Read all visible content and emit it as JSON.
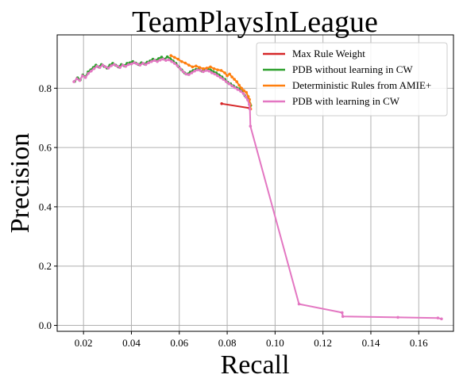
{
  "chart_data": {
    "type": "line",
    "title": "TeamPlaysInLeague",
    "xlabel": "Recall",
    "ylabel": "Precision",
    "xlim": [
      0.009,
      0.1745
    ],
    "ylim": [
      -0.02,
      0.98
    ],
    "xticks": [
      0.02,
      0.04,
      0.06,
      0.08,
      0.1,
      0.12,
      0.14,
      0.16
    ],
    "xtick_labels": [
      "0.02",
      "0.04",
      "0.06",
      "0.08",
      "0.10",
      "0.12",
      "0.14",
      "0.16"
    ],
    "yticks": [
      0.0,
      0.2,
      0.4,
      0.6,
      0.8
    ],
    "ytick_labels": [
      "0.0",
      "0.2",
      "0.4",
      "0.6",
      "0.8"
    ],
    "grid": true,
    "legend_position": "top-right",
    "series": [
      {
        "name": "Max Rule Weight",
        "color": "#d62728",
        "points": [
          [
            0.0777,
            0.748
          ],
          [
            0.0893,
            0.733
          ]
        ]
      },
      {
        "name": "PDB without learning in CW",
        "color": "#2ca02c",
        "points": [
          [
            0.0163,
            0.823
          ],
          [
            0.0175,
            0.835
          ],
          [
            0.0186,
            0.828
          ],
          [
            0.0197,
            0.845
          ],
          [
            0.0208,
            0.838
          ],
          [
            0.0219,
            0.855
          ],
          [
            0.023,
            0.862
          ],
          [
            0.0241,
            0.87
          ],
          [
            0.0252,
            0.878
          ],
          [
            0.0263,
            0.872
          ],
          [
            0.0275,
            0.88
          ],
          [
            0.0286,
            0.874
          ],
          [
            0.0298,
            0.868
          ],
          [
            0.031,
            0.878
          ],
          [
            0.0322,
            0.884
          ],
          [
            0.0334,
            0.878
          ],
          [
            0.0346,
            0.872
          ],
          [
            0.0358,
            0.88
          ],
          [
            0.037,
            0.876
          ],
          [
            0.0382,
            0.884
          ],
          [
            0.0394,
            0.886
          ],
          [
            0.0406,
            0.89
          ],
          [
            0.0418,
            0.885
          ],
          [
            0.043,
            0.88
          ],
          [
            0.0442,
            0.886
          ],
          [
            0.0454,
            0.882
          ],
          [
            0.0466,
            0.888
          ],
          [
            0.0478,
            0.892
          ],
          [
            0.049,
            0.898
          ],
          [
            0.0502,
            0.894
          ],
          [
            0.0514,
            0.9
          ],
          [
            0.0526,
            0.905
          ],
          [
            0.0538,
            0.898
          ],
          [
            0.055,
            0.906
          ],
          [
            0.0562,
            0.9
          ],
          [
            0.0574,
            0.892
          ],
          [
            0.0586,
            0.884
          ],
          [
            0.0598,
            0.872
          ],
          [
            0.061,
            0.862
          ],
          [
            0.0622,
            0.852
          ],
          [
            0.0634,
            0.848
          ],
          [
            0.0646,
            0.855
          ],
          [
            0.0658,
            0.86
          ],
          [
            0.067,
            0.864
          ],
          [
            0.0682,
            0.866
          ],
          [
            0.0694,
            0.858
          ],
          [
            0.0706,
            0.86
          ],
          [
            0.0718,
            0.866
          ],
          [
            0.073,
            0.862
          ],
          [
            0.0742,
            0.856
          ],
          [
            0.0754,
            0.852
          ],
          [
            0.0766,
            0.845
          ],
          [
            0.0778,
            0.838
          ],
          [
            0.079,
            0.83
          ],
          [
            0.0802,
            0.82
          ],
          [
            0.0814,
            0.815
          ],
          [
            0.0826,
            0.808
          ],
          [
            0.0838,
            0.802
          ],
          [
            0.085,
            0.798
          ],
          [
            0.0862,
            0.79
          ],
          [
            0.0874,
            0.775
          ],
          [
            0.0886,
            0.762
          ],
          [
            0.0895,
            0.748
          ],
          [
            0.0898,
            0.742
          ]
        ]
      },
      {
        "name": "Deterministic Rules from AMIE+",
        "color": "#ff7f0e",
        "points": [
          [
            0.0565,
            0.91
          ],
          [
            0.058,
            0.904
          ],
          [
            0.0595,
            0.898
          ],
          [
            0.061,
            0.89
          ],
          [
            0.0625,
            0.885
          ],
          [
            0.064,
            0.878
          ],
          [
            0.0655,
            0.872
          ],
          [
            0.067,
            0.875
          ],
          [
            0.0685,
            0.87
          ],
          [
            0.07,
            0.866
          ],
          [
            0.0715,
            0.868
          ],
          [
            0.073,
            0.872
          ],
          [
            0.0745,
            0.866
          ],
          [
            0.076,
            0.862
          ],
          [
            0.0775,
            0.86
          ],
          [
            0.079,
            0.852
          ],
          [
            0.08,
            0.842
          ],
          [
            0.081,
            0.848
          ],
          [
            0.082,
            0.838
          ],
          [
            0.083,
            0.83
          ],
          [
            0.084,
            0.822
          ],
          [
            0.085,
            0.81
          ],
          [
            0.086,
            0.8
          ],
          [
            0.087,
            0.792
          ],
          [
            0.088,
            0.786
          ],
          [
            0.0888,
            0.772
          ],
          [
            0.0893,
            0.762
          ],
          [
            0.0896,
            0.745
          ],
          [
            0.0898,
            0.73
          ]
        ]
      },
      {
        "name": "PDB with learning in CW",
        "color": "#e377c2",
        "points": [
          [
            0.016,
            0.822
          ],
          [
            0.0172,
            0.832
          ],
          [
            0.0184,
            0.826
          ],
          [
            0.0196,
            0.842
          ],
          [
            0.0208,
            0.836
          ],
          [
            0.022,
            0.85
          ],
          [
            0.0232,
            0.858
          ],
          [
            0.0244,
            0.866
          ],
          [
            0.0256,
            0.874
          ],
          [
            0.0268,
            0.87
          ],
          [
            0.028,
            0.878
          ],
          [
            0.0292,
            0.872
          ],
          [
            0.0304,
            0.868
          ],
          [
            0.0316,
            0.876
          ],
          [
            0.0328,
            0.88
          ],
          [
            0.034,
            0.875
          ],
          [
            0.0352,
            0.87
          ],
          [
            0.0364,
            0.878
          ],
          [
            0.0376,
            0.874
          ],
          [
            0.0388,
            0.88
          ],
          [
            0.04,
            0.882
          ],
          [
            0.0412,
            0.886
          ],
          [
            0.0424,
            0.882
          ],
          [
            0.0436,
            0.878
          ],
          [
            0.0448,
            0.884
          ],
          [
            0.046,
            0.88
          ],
          [
            0.0472,
            0.886
          ],
          [
            0.0484,
            0.89
          ],
          [
            0.0496,
            0.894
          ],
          [
            0.0508,
            0.89
          ],
          [
            0.052,
            0.895
          ],
          [
            0.0532,
            0.898
          ],
          [
            0.0544,
            0.894
          ],
          [
            0.0556,
            0.896
          ],
          [
            0.0568,
            0.89
          ],
          [
            0.058,
            0.884
          ],
          [
            0.0592,
            0.876
          ],
          [
            0.0604,
            0.866
          ],
          [
            0.0616,
            0.856
          ],
          [
            0.0628,
            0.848
          ],
          [
            0.064,
            0.846
          ],
          [
            0.0652,
            0.852
          ],
          [
            0.0664,
            0.858
          ],
          [
            0.0676,
            0.862
          ],
          [
            0.0688,
            0.86
          ],
          [
            0.07,
            0.856
          ],
          [
            0.0712,
            0.86
          ],
          [
            0.0724,
            0.858
          ],
          [
            0.0736,
            0.852
          ],
          [
            0.0748,
            0.848
          ],
          [
            0.076,
            0.842
          ],
          [
            0.0772,
            0.836
          ],
          [
            0.0784,
            0.83
          ],
          [
            0.0796,
            0.822
          ],
          [
            0.0808,
            0.815
          ],
          [
            0.082,
            0.808
          ],
          [
            0.0832,
            0.802
          ],
          [
            0.0844,
            0.796
          ],
          [
            0.0856,
            0.79
          ],
          [
            0.0868,
            0.782
          ],
          [
            0.0878,
            0.77
          ],
          [
            0.0886,
            0.76
          ],
          [
            0.0892,
            0.745
          ],
          [
            0.0895,
            0.73
          ],
          [
            0.0897,
            0.672
          ],
          [
            0.11,
            0.072
          ],
          [
            0.128,
            0.043
          ],
          [
            0.1283,
            0.03
          ],
          [
            0.1513,
            0.027
          ],
          [
            0.168,
            0.025
          ],
          [
            0.1695,
            0.022
          ]
        ]
      }
    ]
  }
}
